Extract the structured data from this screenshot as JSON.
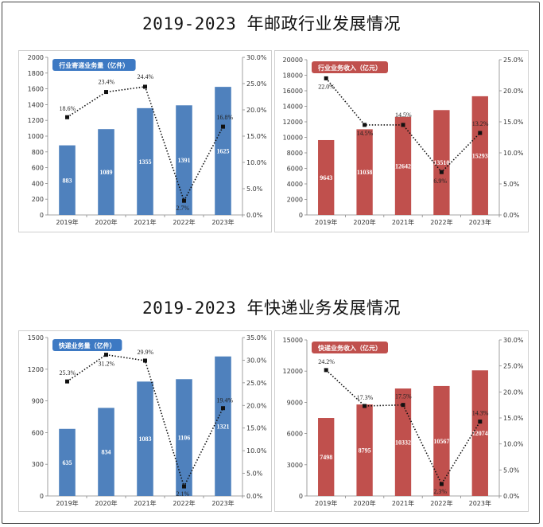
{
  "sections": [
    {
      "title": "2019-2023 年邮政行业发展情况"
    },
    {
      "title": "2019-2023 年快递业务发展情况"
    }
  ],
  "chart_data": [
    {
      "type": "bar",
      "title": "行业寄递业务量（亿件）",
      "categories": [
        "2019年",
        "2020年",
        "2021年",
        "2022年",
        "2023年"
      ],
      "values": [
        883,
        1089,
        1355,
        1391,
        1625
      ],
      "ylim": [
        0,
        2000
      ],
      "yticks": [
        "0",
        "200",
        "400",
        "600",
        "800",
        "1000",
        "1200",
        "1400",
        "1600",
        "1800",
        "2000"
      ],
      "growth": [
        18.6,
        23.4,
        24.4,
        2.7,
        16.8
      ],
      "growth_labels": [
        "18.6%",
        "23.4%",
        "24.4%",
        "2.7%",
        "16.8%"
      ],
      "y2lim": [
        0,
        30
      ],
      "y2ticks": [
        "0.0%",
        "5.0%",
        "10.0%",
        "15.0%",
        "20.0%",
        "25.0%",
        "30.0%"
      ],
      "bar_color": "#4f81bd",
      "title_bg": "#3d79c3"
    },
    {
      "type": "bar",
      "title": "行业业务收入（亿元）",
      "categories": [
        "2019年",
        "2020年",
        "2021年",
        "2022年",
        "2023年"
      ],
      "values": [
        9643,
        11038,
        12642,
        13510,
        15293
      ],
      "ylim": [
        0,
        20000
      ],
      "yticks": [
        "0",
        "2000",
        "4000",
        "6000",
        "8000",
        "10000",
        "12000",
        "14000",
        "16000",
        "18000",
        "20000"
      ],
      "growth": [
        22.0,
        14.5,
        14.5,
        6.9,
        13.2
      ],
      "growth_labels": [
        "22.0%",
        "14.5%",
        "14.5%",
        "6.9%",
        "13.2%"
      ],
      "y2lim": [
        0,
        25
      ],
      "y2ticks": [
        "0.0%",
        "5.0%",
        "10.0%",
        "15.0%",
        "20.0%",
        "25.0%"
      ],
      "bar_color": "#c0504d",
      "title_bg": "#c0504d"
    },
    {
      "type": "bar",
      "title": "快递业务量（亿件）",
      "categories": [
        "2019年",
        "2020年",
        "2021年",
        "2022年",
        "2023年"
      ],
      "values": [
        635,
        834,
        1083,
        1106,
        1321
      ],
      "ylim": [
        0,
        1500
      ],
      "yticks": [
        "0",
        "300",
        "600",
        "900",
        "1200",
        "1500"
      ],
      "growth": [
        25.3,
        31.2,
        29.9,
        2.1,
        19.4
      ],
      "growth_labels": [
        "25.3%",
        "31.2%",
        "29.9%",
        "2.1%",
        "19.4%"
      ],
      "y2lim": [
        0,
        35
      ],
      "y2ticks": [
        "0.0%",
        "5.0%",
        "10.0%",
        "15.0%",
        "20.0%",
        "25.0%",
        "30.0%",
        "35.0%"
      ],
      "bar_color": "#4f81bd",
      "title_bg": "#3d79c3"
    },
    {
      "type": "bar",
      "title": "快递业务收入（亿元）",
      "categories": [
        "2019年",
        "2020年",
        "2021年",
        "2022年",
        "2023年"
      ],
      "values": [
        7498,
        8795,
        10332,
        10567,
        12074
      ],
      "ylim": [
        0,
        15000
      ],
      "yticks": [
        "0",
        "3000",
        "6000",
        "9000",
        "12000",
        "15000"
      ],
      "growth": [
        24.2,
        17.3,
        17.5,
        2.3,
        14.3
      ],
      "growth_labels": [
        "24.2%",
        "17.3%",
        "17.5%",
        "2.3%",
        "14.3%"
      ],
      "y2lim": [
        0,
        30
      ],
      "y2ticks": [
        "0.0%",
        "5.0%",
        "10.0%",
        "15.0%",
        "20.0%",
        "25.0%",
        "30.0%"
      ],
      "bar_color": "#c0504d",
      "title_bg": "#c0504d"
    }
  ]
}
